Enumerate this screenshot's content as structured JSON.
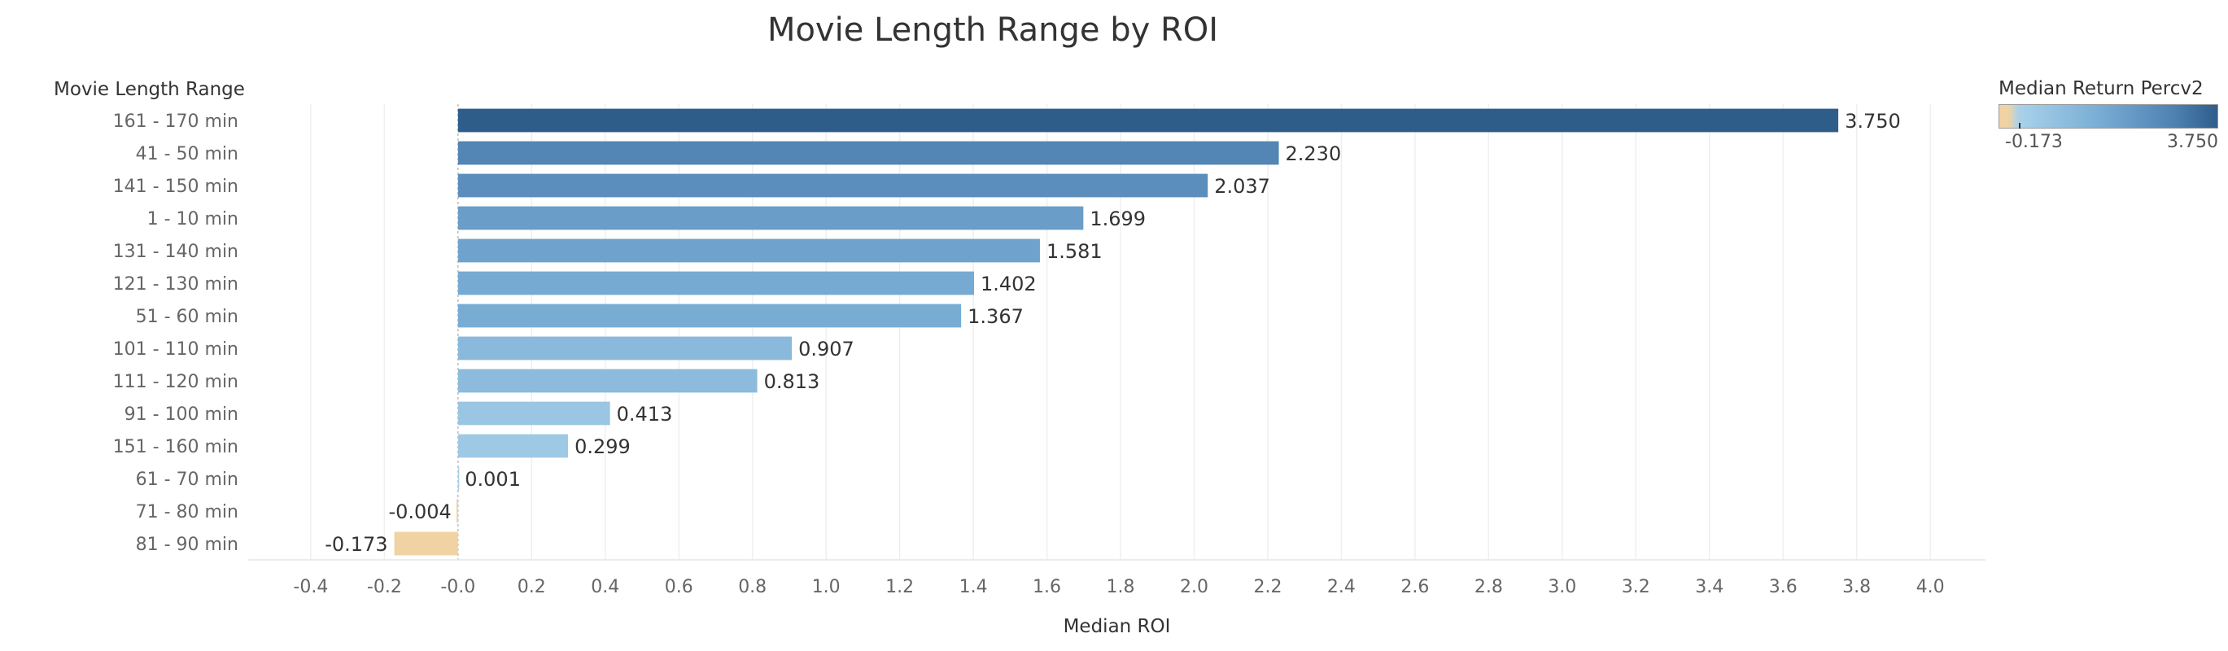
{
  "chart_data": {
    "type": "bar",
    "orientation": "horizontal",
    "title": "Movie Length Range by ROI",
    "row_header": "Movie Length Range",
    "xlabel": "Median ROI",
    "categories": [
      "161 - 170 min",
      "41 - 50 min",
      "141 - 150 min",
      "1 - 10 min",
      "131 - 140 min",
      "121 - 130 min",
      "51 - 60 min",
      "101 - 110 min",
      "111 - 120 min",
      "91 - 100 min",
      "151 - 160 min",
      "61 - 70 min",
      "71 - 80 min",
      "81 - 90 min"
    ],
    "values": [
      3.75,
      2.23,
      2.037,
      1.699,
      1.581,
      1.402,
      1.367,
      0.907,
      0.813,
      0.413,
      0.299,
      0.001,
      -0.004,
      -0.173
    ],
    "value_labels": [
      "3.750",
      "2.230",
      "2.037",
      "1.699",
      "1.581",
      "1.402",
      "1.367",
      "0.907",
      "0.813",
      "0.413",
      "0.299",
      "0.001",
      "-0.004",
      "-0.173"
    ],
    "xlim": [
      -0.57,
      4.15
    ],
    "xticks": [
      -0.4,
      -0.2,
      0.0,
      0.2,
      0.4,
      0.6,
      0.8,
      1.0,
      1.2,
      1.4,
      1.6,
      1.8,
      2.0,
      2.2,
      2.4,
      2.6,
      2.8,
      3.0,
      3.2,
      3.4,
      3.6,
      3.8,
      4.0
    ],
    "xtick_labels": [
      "-0.4",
      "-0.2",
      "-0.0",
      "0.2",
      "0.4",
      "0.6",
      "0.8",
      "1.0",
      "1.2",
      "1.4",
      "1.6",
      "1.8",
      "2.0",
      "2.2",
      "2.4",
      "2.6",
      "2.8",
      "3.0",
      "3.2",
      "3.4",
      "3.6",
      "3.8",
      "4.0"
    ],
    "grid": true,
    "color_legend": {
      "title": "Median Return Percv2",
      "min_label": "-0.173",
      "max_label": "3.750",
      "min": -0.173,
      "max": 3.75,
      "colors": [
        "#f1d2a3",
        "#a9d1ea",
        "#7aaed5",
        "#4f81b2",
        "#2e5d8a"
      ],
      "placement": "top-right"
    }
  }
}
